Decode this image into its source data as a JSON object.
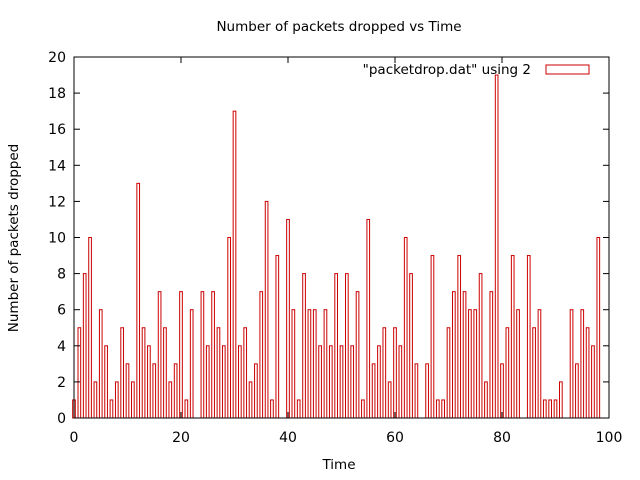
{
  "chart_data": {
    "type": "bar",
    "title": "Number of packets dropped vs Time",
    "xlabel": "Time",
    "ylabel": "Number of packets dropped",
    "xlim": [
      0,
      100
    ],
    "ylim": [
      0,
      20
    ],
    "xticks": [
      0,
      20,
      40,
      60,
      80,
      100
    ],
    "yticks": [
      0,
      2,
      4,
      6,
      8,
      10,
      12,
      14,
      16,
      18,
      20
    ],
    "grid": false,
    "legend_position": "top-right",
    "series": [
      {
        "name": "\"packetdrop.dat\" using 2",
        "color": "#cc0000",
        "x": [
          0,
          1,
          2,
          3,
          4,
          5,
          6,
          7,
          8,
          9,
          10,
          11,
          12,
          13,
          14,
          15,
          16,
          17,
          18,
          19,
          20,
          21,
          22,
          23,
          24,
          25,
          26,
          27,
          28,
          29,
          30,
          31,
          32,
          33,
          34,
          35,
          36,
          37,
          38,
          39,
          40,
          41,
          42,
          43,
          44,
          45,
          46,
          47,
          48,
          49,
          50,
          51,
          52,
          53,
          54,
          55,
          56,
          57,
          58,
          59,
          60,
          61,
          62,
          63,
          64,
          65,
          66,
          67,
          68,
          69,
          70,
          71,
          72,
          73,
          74,
          75,
          76,
          77,
          78,
          79,
          80,
          81,
          82,
          83,
          84,
          85,
          86,
          87,
          88,
          89,
          90,
          91,
          92,
          93,
          94,
          95,
          96,
          97,
          98
        ],
        "values": [
          1,
          5,
          8,
          10,
          2,
          6,
          4,
          1,
          2,
          5,
          3,
          2,
          13,
          5,
          4,
          3,
          7,
          5,
          2,
          3,
          7,
          1,
          6,
          0,
          7,
          4,
          7,
          5,
          4,
          10,
          17,
          4,
          5,
          2,
          3,
          7,
          12,
          1,
          9,
          0,
          11,
          6,
          1,
          8,
          6,
          6,
          4,
          6,
          4,
          8,
          4,
          8,
          4,
          7,
          1,
          11,
          3,
          4,
          5,
          2,
          5,
          4,
          10,
          8,
          3,
          0,
          3,
          9,
          1,
          1,
          5,
          7,
          9,
          7,
          6,
          6,
          8,
          2,
          7,
          19,
          3,
          5,
          9,
          6,
          0,
          9,
          5,
          6,
          1,
          1,
          1,
          2,
          0,
          6,
          3,
          6,
          5,
          4,
          10
        ]
      }
    ]
  }
}
